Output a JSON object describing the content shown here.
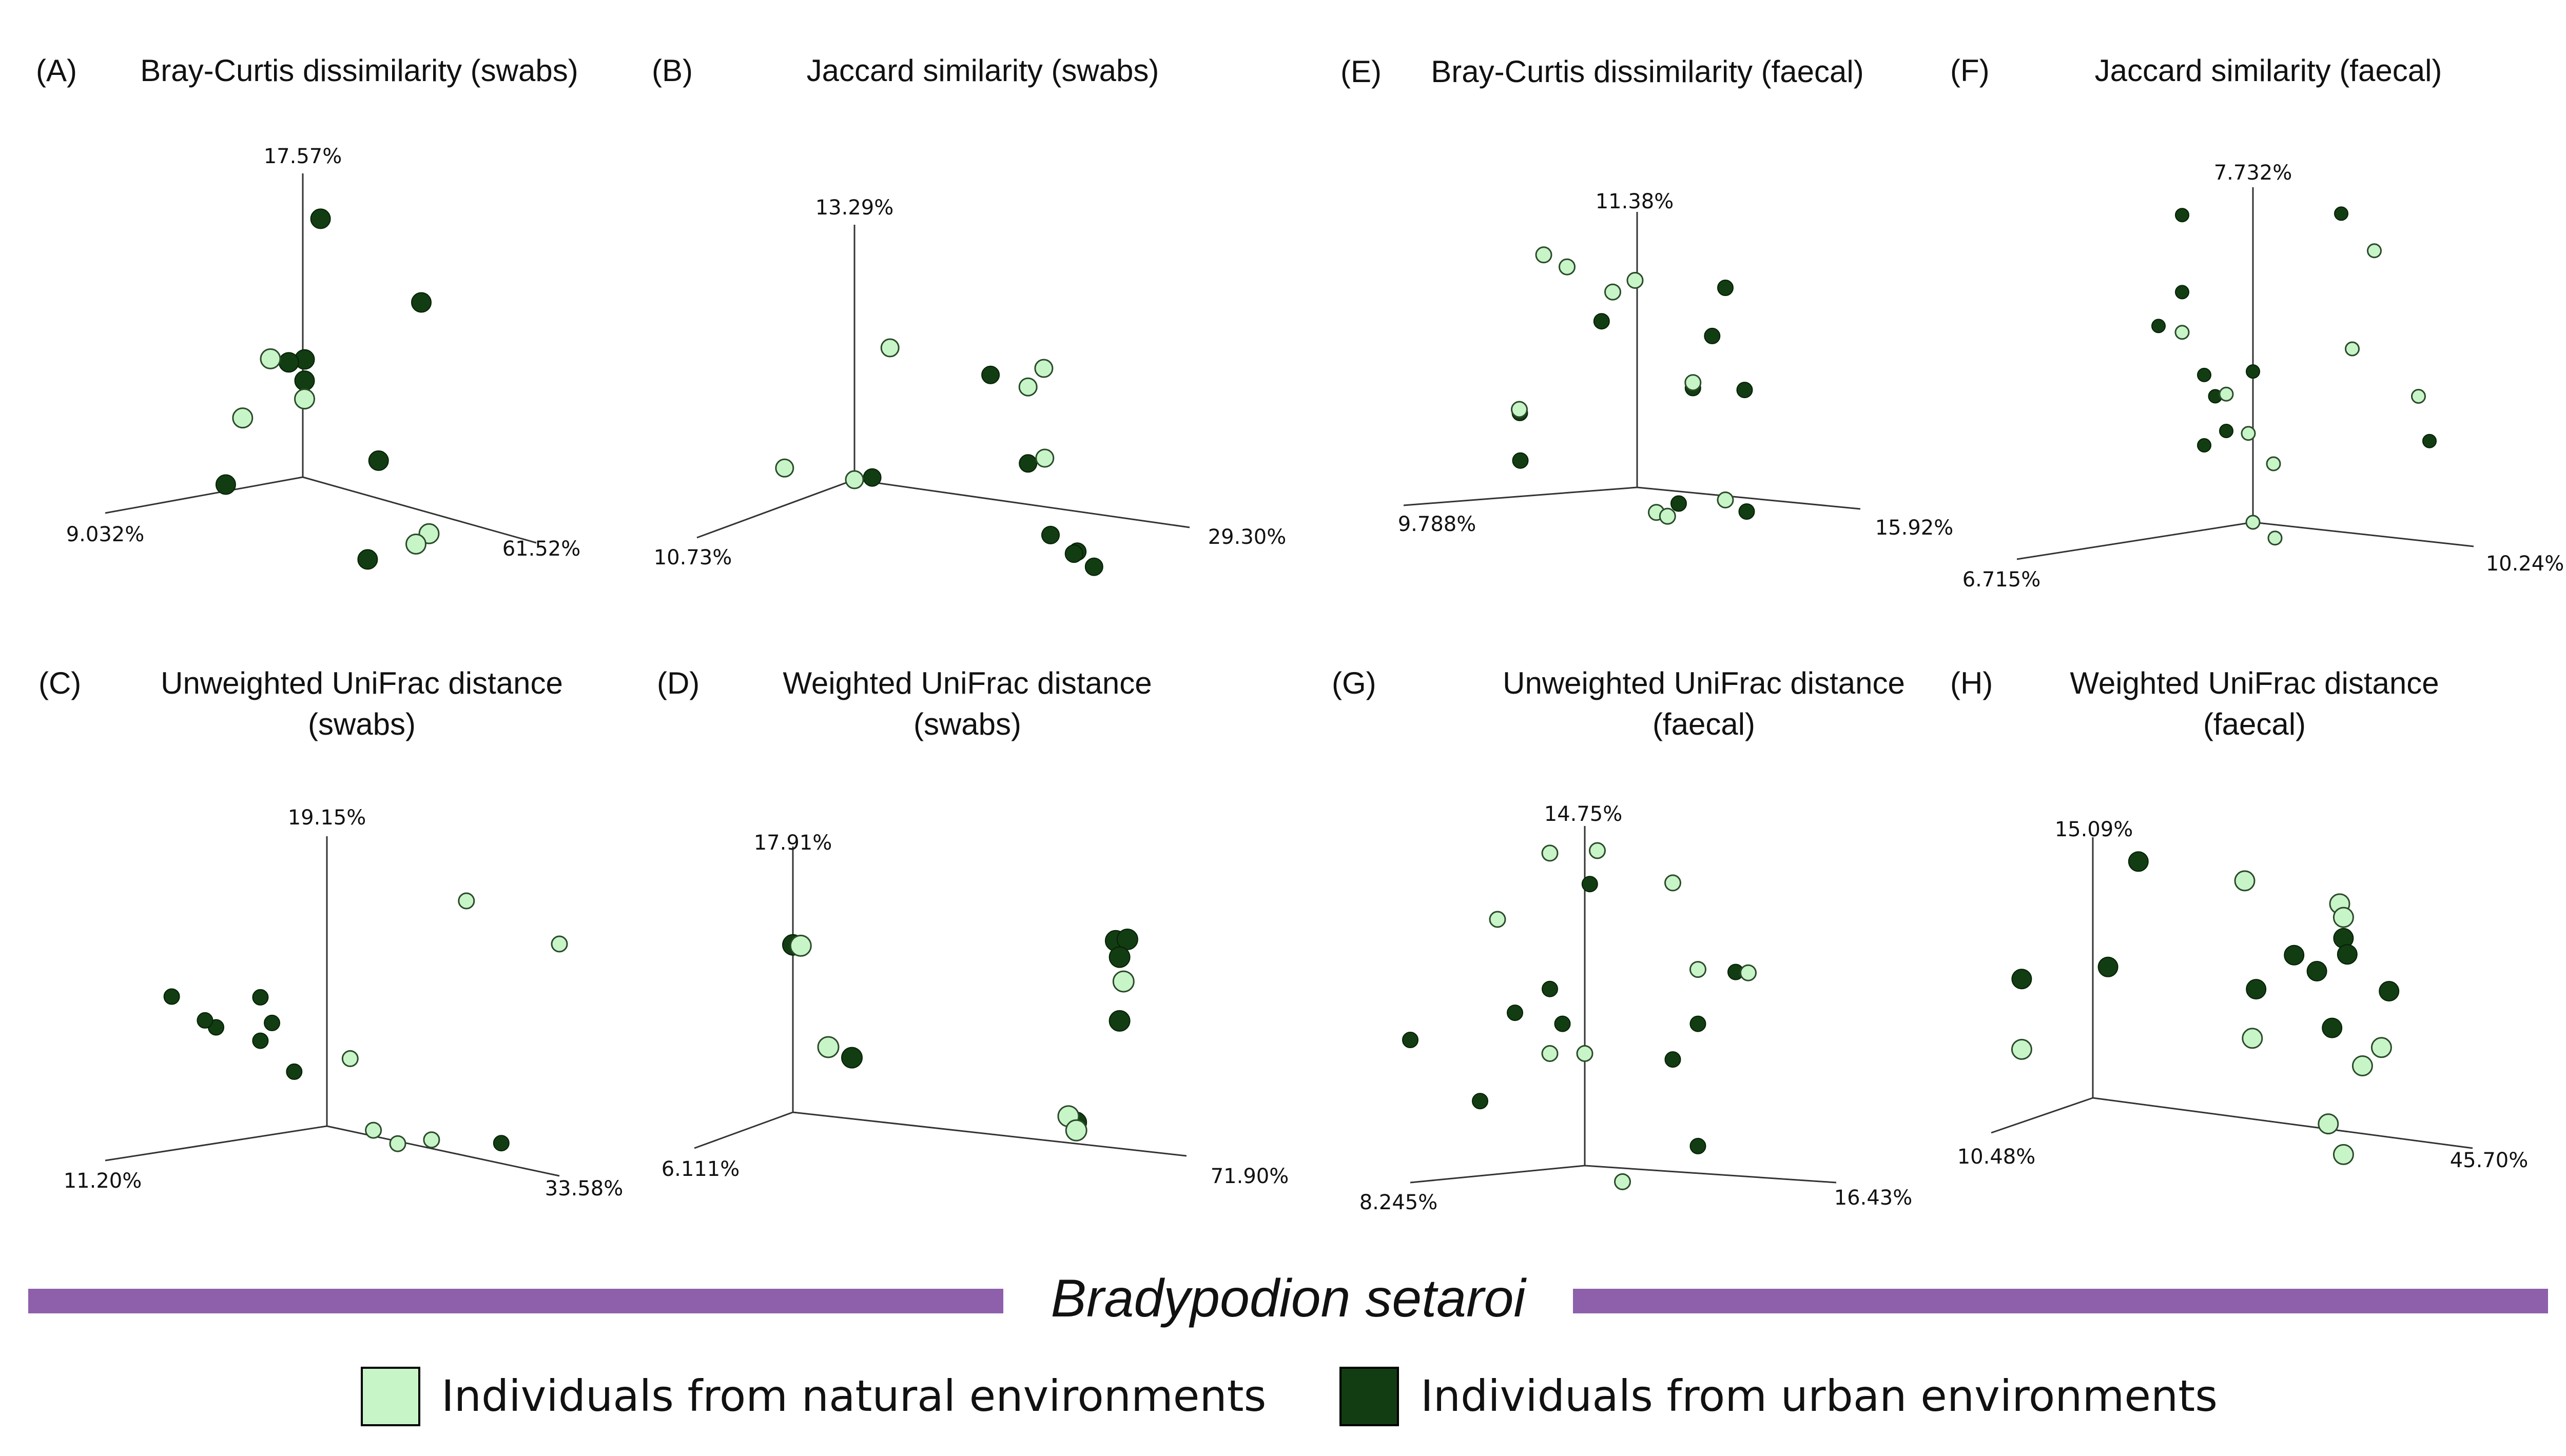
{
  "figure": {
    "species": "Bradypodion setaroi",
    "band_color": "#8e5fab",
    "natural_color": "#c8f5c8",
    "urban_color": "#123d12",
    "legend": [
      {
        "name": "natural",
        "label": "Individuals from natural environments"
      },
      {
        "name": "urban",
        "label": "Individuals from urban environments"
      }
    ]
  },
  "chart_data": [
    {
      "id": "A",
      "type": "scatter",
      "letter": "(A)",
      "title": [
        "Bray-Curtis dissimilarity (swabs)"
      ],
      "axes": {
        "x": "9.032%",
        "y": "61.52%",
        "z": "17.57%"
      },
      "points": [
        {
          "x": -0.09,
          "y": 0.0,
          "z": 0.84,
          "group": "urban"
        },
        {
          "x": 0.05,
          "y": 0.55,
          "z": 0.7,
          "group": "urban"
        },
        {
          "x": 0.7,
          "y": 0.6,
          "z": 0.6,
          "group": "urban"
        },
        {
          "x": 0.78,
          "y": 0.6,
          "z": 0.6,
          "group": "urban"
        },
        {
          "x": 0.7,
          "y": 0.6,
          "z": 0.53,
          "group": "urban"
        },
        {
          "x": 0.55,
          "y": 0.79,
          "z": 0.29,
          "group": "urban"
        },
        {
          "x": 0.7,
          "y": 0.87,
          "z": 0.0,
          "group": "urban"
        },
        {
          "x": 0.65,
          "y": 0.22,
          "z": 0.1,
          "group": "urban"
        },
        {
          "x": 0.33,
          "y": 0.82,
          "z": 0.03,
          "group": "natural"
        },
        {
          "x": 0.55,
          "y": 0.95,
          "z": 0.05,
          "group": "natural"
        },
        {
          "x": 0.7,
          "y": 0.6,
          "z": 0.47,
          "group": "natural"
        },
        {
          "x": 0.6,
          "y": 0.25,
          "z": 0.32,
          "group": "natural"
        },
        {
          "x": 0.4,
          "y": 0.2,
          "z": 0.48,
          "group": "natural"
        }
      ]
    },
    {
      "id": "B",
      "type": "scatter",
      "letter": "(B)",
      "title": [
        "Jaccard similarity (swabs)"
      ],
      "axes": {
        "x": "10.73%",
        "y": "29.30%",
        "z": "13.29%"
      },
      "points": [
        {
          "x": 0.2,
          "y": 0.5,
          "z": 0.55,
          "group": "urban"
        },
        {
          "x": 0.6,
          "y": 0.8,
          "z": 0.65,
          "group": "urban"
        },
        {
          "x": 0.6,
          "y": 0.8,
          "z": 0.35,
          "group": "urban"
        },
        {
          "x": 0.5,
          "y": 0.82,
          "z": 0.05,
          "group": "urban"
        },
        {
          "x": 0.5,
          "y": 0.9,
          "z": 0.0,
          "group": "urban"
        },
        {
          "x": 0.5,
          "y": 0.89,
          "z": -0.01,
          "group": "urban"
        },
        {
          "x": 0.5,
          "y": 0.95,
          "z": -0.05,
          "group": "urban"
        },
        {
          "x": 0.1,
          "y": 0.1,
          "z": 0.05,
          "group": "urban"
        },
        {
          "x": 0.2,
          "y": 0.2,
          "z": 0.6,
          "group": "natural"
        },
        {
          "x": 0.5,
          "y": 0.8,
          "z": 0.7,
          "group": "natural"
        },
        {
          "x": 0.6,
          "y": 0.8,
          "z": 0.65,
          "group": "natural"
        },
        {
          "x": 0.6,
          "y": 0.85,
          "z": 0.38,
          "group": "natural"
        },
        {
          "x": 0.55,
          "y": 0.05,
          "z": 0.18,
          "group": "natural"
        },
        {
          "x": 0.0,
          "y": 0.0,
          "z": 0.0,
          "group": "natural"
        }
      ]
    },
    {
      "id": "E",
      "type": "scatter",
      "letter": "(E)",
      "title": [
        "Bray-Curtis dissimilarity (faecal)"
      ],
      "axes": {
        "x": "9.788%",
        "y": "15.92%",
        "z": "11.38%"
      },
      "points": [
        {
          "x": 0.2,
          "y": 0.05,
          "z": 0.62,
          "group": "urban"
        },
        {
          "x": 0.1,
          "y": 0.5,
          "z": 0.77,
          "group": "urban"
        },
        {
          "x": 0.3,
          "y": 0.65,
          "z": 0.62,
          "group": "urban"
        },
        {
          "x": 0.4,
          "y": 0.9,
          "z": 0.45,
          "group": "urban"
        },
        {
          "x": 0.0,
          "y": 0.25,
          "z": 0.38,
          "group": "urban"
        },
        {
          "x": 0.55,
          "y": 0.05,
          "z": 0.31,
          "group": "urban"
        },
        {
          "x": 0.5,
          "y": 0.0,
          "z": 0.13,
          "group": "urban"
        },
        {
          "x": 0.3,
          "y": 0.5,
          "z": 0.0,
          "group": "urban"
        },
        {
          "x": 0.2,
          "y": 0.7,
          "z": -0.02,
          "group": "urban"
        },
        {
          "x": 0.3,
          "y": 0.0,
          "z": 0.82,
          "group": "natural"
        },
        {
          "x": 0.4,
          "y": 0.0,
          "z": 0.87,
          "group": "natural"
        },
        {
          "x": 0.2,
          "y": 0.2,
          "z": 0.78,
          "group": "natural"
        },
        {
          "x": 0.2,
          "y": 0.1,
          "z": 0.73,
          "group": "natural"
        },
        {
          "x": 0.0,
          "y": 0.25,
          "z": 0.4,
          "group": "natural"
        },
        {
          "x": 0.6,
          "y": 0.1,
          "z": 0.33,
          "group": "natural"
        },
        {
          "x": 0.1,
          "y": 0.5,
          "z": 0.0,
          "group": "natural"
        },
        {
          "x": 0.3,
          "y": 0.4,
          "z": -0.04,
          "group": "natural"
        },
        {
          "x": 0.3,
          "y": 0.45,
          "z": -0.05,
          "group": "natural"
        }
      ]
    },
    {
      "id": "F",
      "type": "scatter",
      "letter": "(F)",
      "title": [
        "Jaccard similarity (faecal)"
      ],
      "axes": {
        "x": "6.715%",
        "y": "10.24%",
        "z": "7.732%"
      },
      "points": [
        {
          "x": 0.3,
          "y": 0.0,
          "z": 0.95,
          "group": "urban"
        },
        {
          "x": 0.3,
          "y": 0.0,
          "z": 0.72,
          "group": "urban"
        },
        {
          "x": 0.4,
          "y": 0.0,
          "z": 0.63,
          "group": "urban"
        },
        {
          "x": 0.3,
          "y": 0.1,
          "z": 0.48,
          "group": "urban"
        },
        {
          "x": 0.3,
          "y": 0.15,
          "z": 0.42,
          "group": "urban"
        },
        {
          "x": 0.3,
          "y": 0.2,
          "z": 0.32,
          "group": "urban"
        },
        {
          "x": 0.0,
          "y": 0.0,
          "z": 0.45,
          "group": "urban"
        },
        {
          "x": 0.3,
          "y": 0.1,
          "z": 0.27,
          "group": "urban"
        },
        {
          "x": 0.0,
          "y": 0.4,
          "z": 0.95,
          "group": "urban"
        },
        {
          "x": 0.0,
          "y": 0.8,
          "z": 0.3,
          "group": "urban"
        },
        {
          "x": 0.0,
          "y": 0.55,
          "z": 0.85,
          "group": "natural"
        },
        {
          "x": 0.3,
          "y": 0.0,
          "z": 0.6,
          "group": "natural"
        },
        {
          "x": 0.3,
          "y": 0.2,
          "z": 0.43,
          "group": "natural"
        },
        {
          "x": 0.3,
          "y": 0.3,
          "z": 0.32,
          "group": "natural"
        },
        {
          "x": 0.0,
          "y": 0.45,
          "z": 0.55,
          "group": "natural"
        },
        {
          "x": 0.0,
          "y": 0.75,
          "z": 0.43,
          "group": "natural"
        },
        {
          "x": 0.1,
          "y": 0.2,
          "z": 0.2,
          "group": "natural"
        },
        {
          "x": 0.0,
          "y": 0.0,
          "z": 0.0,
          "group": "natural"
        },
        {
          "x": 0.0,
          "y": 0.1,
          "z": -0.04,
          "group": "natural"
        }
      ]
    },
    {
      "id": "C",
      "type": "scatter",
      "letter": "(C)",
      "title": [
        "Unweighted UniFrac distance",
        "(swabs)"
      ],
      "axes": {
        "x": "11.20%",
        "y": "33.58%",
        "z": "19.15%"
      },
      "points": [
        {
          "x": 0.7,
          "y": 0.0,
          "z": 0.53,
          "group": "urban"
        },
        {
          "x": 0.5,
          "y": 0.0,
          "z": 0.4,
          "group": "urban"
        },
        {
          "x": 0.55,
          "y": 0.0,
          "z": 0.43,
          "group": "urban"
        },
        {
          "x": 0.3,
          "y": 0.0,
          "z": 0.48,
          "group": "urban"
        },
        {
          "x": 0.3,
          "y": 0.05,
          "z": 0.4,
          "group": "urban"
        },
        {
          "x": 0.3,
          "y": 0.0,
          "z": 0.33,
          "group": "urban"
        },
        {
          "x": 0.2,
          "y": 0.05,
          "z": 0.22,
          "group": "urban"
        },
        {
          "x": 0.0,
          "y": 0.75,
          "z": 0.07,
          "group": "urban"
        },
        {
          "x": 0.0,
          "y": 0.1,
          "z": 0.25,
          "group": "natural"
        },
        {
          "x": 0.0,
          "y": 0.6,
          "z": 0.88,
          "group": "natural"
        },
        {
          "x": 0.0,
          "y": 1.0,
          "z": 0.8,
          "group": "natural"
        },
        {
          "x": 0.0,
          "y": 0.2,
          "z": 0.02,
          "group": "natural"
        },
        {
          "x": 0.1,
          "y": 0.4,
          "z": 0.02,
          "group": "natural"
        },
        {
          "x": 0.0,
          "y": 0.45,
          "z": 0.03,
          "group": "natural"
        }
      ]
    },
    {
      "id": "D",
      "type": "scatter",
      "letter": "(D)",
      "title": [
        "Weighted UniFrac distance",
        "(swabs)"
      ],
      "axes": {
        "x": "6.111%",
        "y": "71.90%",
        "z": "17.91%"
      },
      "points": [
        {
          "x": 0.0,
          "y": 0.0,
          "z": 0.63,
          "group": "urban"
        },
        {
          "x": 0.0,
          "y": 0.15,
          "z": 0.23,
          "group": "urban"
        },
        {
          "x": 0.0,
          "y": 0.82,
          "z": 0.78,
          "group": "urban"
        },
        {
          "x": 0.0,
          "y": 0.85,
          "z": 0.79,
          "group": "urban"
        },
        {
          "x": 0.0,
          "y": 0.83,
          "z": 0.72,
          "group": "urban"
        },
        {
          "x": 0.0,
          "y": 0.83,
          "z": 0.48,
          "group": "urban"
        },
        {
          "x": 0.0,
          "y": 0.72,
          "z": 0.08,
          "group": "urban"
        },
        {
          "x": 0.0,
          "y": 0.02,
          "z": 0.63,
          "group": "natural"
        },
        {
          "x": 0.0,
          "y": 0.09,
          "z": 0.26,
          "group": "natural"
        },
        {
          "x": 0.0,
          "y": 0.84,
          "z": 0.63,
          "group": "natural"
        },
        {
          "x": 0.0,
          "y": 0.7,
          "z": 0.1,
          "group": "natural"
        },
        {
          "x": 0.0,
          "y": 0.72,
          "z": 0.05,
          "group": "natural"
        }
      ]
    },
    {
      "id": "G",
      "type": "scatter",
      "letter": "(G)",
      "title": [
        "Unweighted UniFrac distance",
        "(faecal)"
      ],
      "axes": {
        "x": "8.245%",
        "y": "16.43%",
        "z": "14.75%"
      },
      "points": [
        {
          "x": 0.0,
          "y": 0.02,
          "z": 0.83,
          "group": "urban"
        },
        {
          "x": 0.2,
          "y": 0.0,
          "z": 0.53,
          "group": "urban"
        },
        {
          "x": 0.4,
          "y": 0.0,
          "z": 0.47,
          "group": "urban"
        },
        {
          "x": 0.2,
          "y": 0.05,
          "z": 0.43,
          "group": "urban"
        },
        {
          "x": 1.0,
          "y": 0.0,
          "z": 0.42,
          "group": "urban"
        },
        {
          "x": 0.6,
          "y": 0.0,
          "z": 0.22,
          "group": "urban"
        },
        {
          "x": 0.0,
          "y": 0.45,
          "z": 0.44,
          "group": "urban"
        },
        {
          "x": 0.0,
          "y": 0.35,
          "z": 0.33,
          "group": "urban"
        },
        {
          "x": 0.0,
          "y": 0.6,
          "z": 0.6,
          "group": "urban"
        },
        {
          "x": 0.0,
          "y": 0.45,
          "z": 0.08,
          "group": "urban"
        },
        {
          "x": 0.2,
          "y": 0.0,
          "z": 0.93,
          "group": "natural"
        },
        {
          "x": 0.0,
          "y": 0.05,
          "z": 0.93,
          "group": "natural"
        },
        {
          "x": 0.0,
          "y": 0.35,
          "z": 0.85,
          "group": "natural"
        },
        {
          "x": 0.5,
          "y": 0.0,
          "z": 0.75,
          "group": "natural"
        },
        {
          "x": 0.2,
          "y": 0.0,
          "z": 0.34,
          "group": "natural"
        },
        {
          "x": 0.0,
          "y": 0.0,
          "z": 0.33,
          "group": "natural"
        },
        {
          "x": 0.0,
          "y": 0.45,
          "z": 0.6,
          "group": "natural"
        },
        {
          "x": 0.0,
          "y": 0.65,
          "z": 0.6,
          "group": "natural"
        },
        {
          "x": 0.0,
          "y": 0.15,
          "z": -0.04,
          "group": "natural"
        }
      ]
    },
    {
      "id": "H",
      "type": "scatter",
      "letter": "(H)",
      "title": [
        "Weighted UniFrac distance",
        "(faecal)"
      ],
      "axes": {
        "x": "10.48%",
        "y": "45.70%",
        "z": "15.09%"
      },
      "points": [
        {
          "x": 0.0,
          "y": 0.12,
          "z": 0.93,
          "group": "urban"
        },
        {
          "x": 0.7,
          "y": 0.0,
          "z": 0.55,
          "group": "urban"
        },
        {
          "x": 0.0,
          "y": 0.04,
          "z": 0.51,
          "group": "urban"
        },
        {
          "x": 0.0,
          "y": 0.53,
          "z": 0.65,
          "group": "urban"
        },
        {
          "x": 0.0,
          "y": 0.59,
          "z": 0.6,
          "group": "urban"
        },
        {
          "x": 0.0,
          "y": 0.66,
          "z": 0.74,
          "group": "urban"
        },
        {
          "x": 0.0,
          "y": 0.67,
          "z": 0.68,
          "group": "urban"
        },
        {
          "x": 0.0,
          "y": 0.78,
          "z": 0.56,
          "group": "urban"
        },
        {
          "x": 0.0,
          "y": 0.43,
          "z": 0.5,
          "group": "urban"
        },
        {
          "x": 0.0,
          "y": 0.63,
          "z": 0.39,
          "group": "urban"
        },
        {
          "x": 0.0,
          "y": 0.4,
          "z": 0.91,
          "group": "natural"
        },
        {
          "x": 0.0,
          "y": 0.65,
          "z": 0.87,
          "group": "natural"
        },
        {
          "x": 0.0,
          "y": 0.66,
          "z": 0.82,
          "group": "natural"
        },
        {
          "x": 0.7,
          "y": 0.0,
          "z": 0.28,
          "group": "natural"
        },
        {
          "x": 0.0,
          "y": 0.42,
          "z": 0.31,
          "group": "natural"
        },
        {
          "x": 0.0,
          "y": 0.71,
          "z": 0.26,
          "group": "natural"
        },
        {
          "x": 0.0,
          "y": 0.76,
          "z": 0.34,
          "group": "natural"
        },
        {
          "x": 0.0,
          "y": 0.62,
          "z": 0.02,
          "group": "natural"
        },
        {
          "x": 0.0,
          "y": 0.66,
          "z": -0.09,
          "group": "natural"
        }
      ]
    }
  ]
}
